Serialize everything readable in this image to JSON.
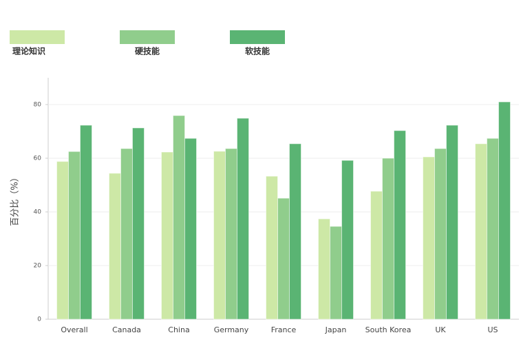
{
  "chart_data": {
    "type": "bar",
    "y_label": "百分比（%）",
    "categories": [
      "Overall",
      "Canada",
      "China",
      "Germany",
      "France",
      "Japan",
      "South Korea",
      "UK",
      "US"
    ],
    "series": [
      {
        "name": "理论知识",
        "color": "#cde8a6",
        "values": [
          58.8,
          54.4,
          62.3,
          62.6,
          53.3,
          37.4,
          47.7,
          60.5,
          65.4
        ]
      },
      {
        "name": "硬技能",
        "color": "#90cd8c",
        "values": [
          62.5,
          63.6,
          75.9,
          63.6,
          45.1,
          34.6,
          60,
          63.6,
          67.4
        ]
      },
      {
        "name": "软技能",
        "color": "#5ab473",
        "values": [
          72.3,
          71.3,
          67.4,
          74.9,
          65.4,
          59.2,
          70.3,
          72.3,
          81
        ]
      }
    ],
    "ylim": [
      0,
      90
    ],
    "yticks": [
      0,
      20,
      40,
      60,
      80
    ],
    "grid": true
  }
}
